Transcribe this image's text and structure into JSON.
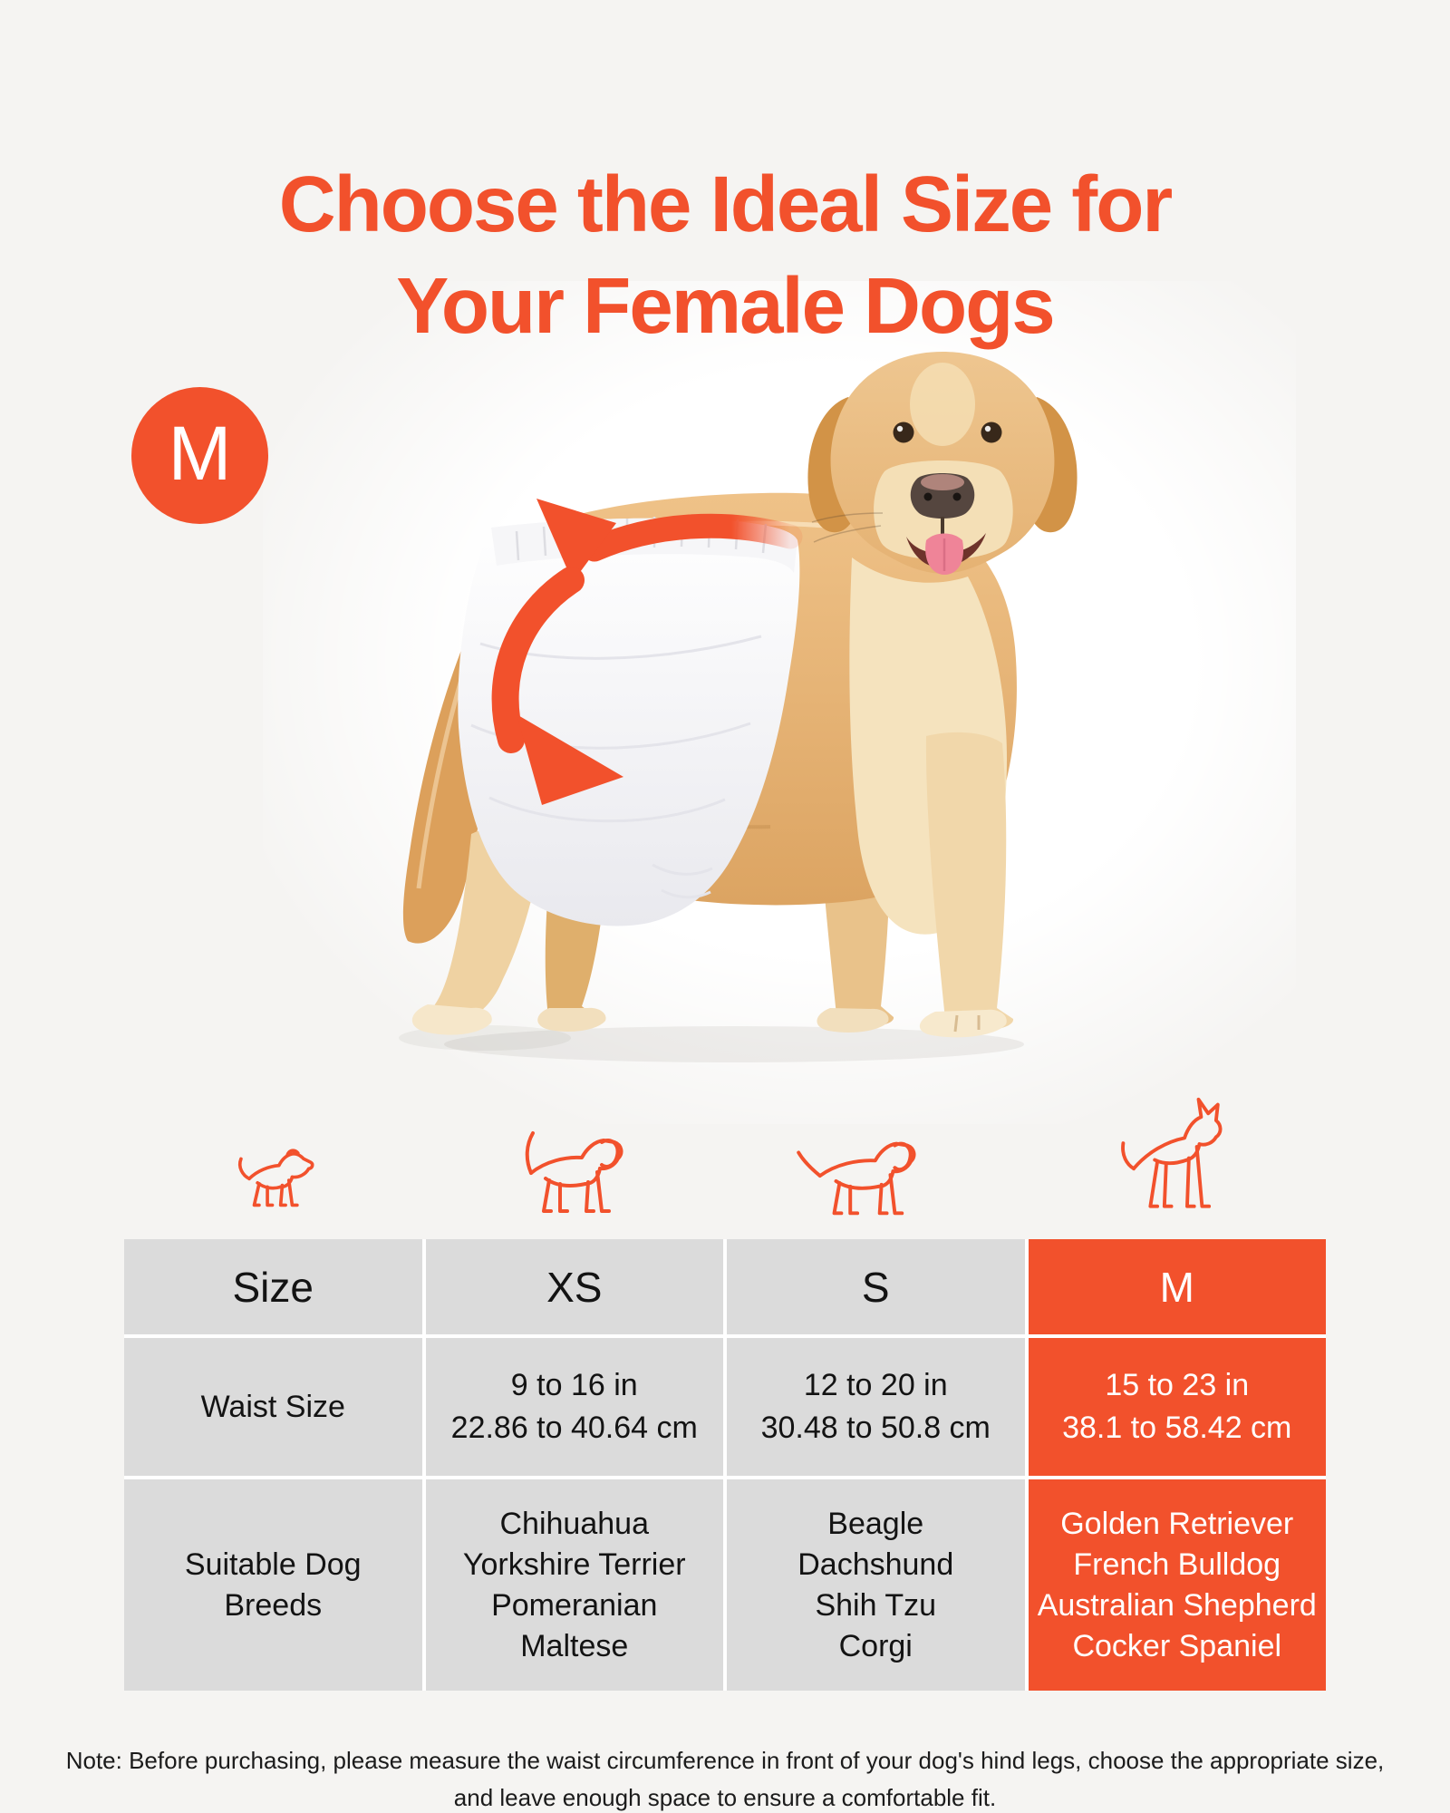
{
  "colors": {
    "accent": "#F2512C",
    "cell_gray": "#DBDBDB",
    "page_bg": "#F5F4F2",
    "text": "#131313",
    "highlight_text": "#FFFFFF",
    "diaper_white": "#FFFFFF",
    "dog_gold": "#E5B276"
  },
  "title": {
    "lines": [
      "Choose the Ideal Size for",
      "Your Female Dogs"
    ]
  },
  "size_badge": {
    "label": "M"
  },
  "hero": {
    "icons": [
      "golden-retriever-photo",
      "diaper-graphic",
      "wrap-arrow-up-icon",
      "wrap-arrow-down-icon"
    ]
  },
  "dog_icons": [
    "tiny-dog-icon",
    "small-dog-icon",
    "medium-dog-icon",
    "large-dog-icon"
  ],
  "table": {
    "header": [
      "Size",
      "XS",
      "S",
      "M"
    ],
    "highlighted_column": "M",
    "rows": [
      {
        "label_lines": [
          "Waist Size"
        ],
        "cells": [
          {
            "lines": [
              "9 to 16 in",
              "22.86 to 40.64 cm"
            ]
          },
          {
            "lines": [
              "12 to 20 in",
              "30.48 to 50.8 cm"
            ]
          },
          {
            "lines": [
              "15 to 23 in",
              "38.1 to 58.42 cm"
            ]
          }
        ]
      },
      {
        "label_lines": [
          "Suitable Dog",
          "Breeds"
        ],
        "cells": [
          {
            "lines": [
              "Chihuahua",
              "Yorkshire Terrier",
              "Pomeranian",
              "Maltese"
            ]
          },
          {
            "lines": [
              "Beagle",
              "Dachshund",
              "Shih Tzu",
              "Corgi"
            ]
          },
          {
            "lines": [
              "Golden Retriever",
              "French Bulldog",
              "Australian Shepherd",
              "Cocker Spaniel"
            ]
          }
        ]
      }
    ]
  },
  "note": {
    "lines": [
      "Note: Before purchasing, please measure the waist circumference in front of your dog's hind legs, choose the appropriate size,",
      "and leave enough space to ensure a comfortable fit."
    ]
  }
}
